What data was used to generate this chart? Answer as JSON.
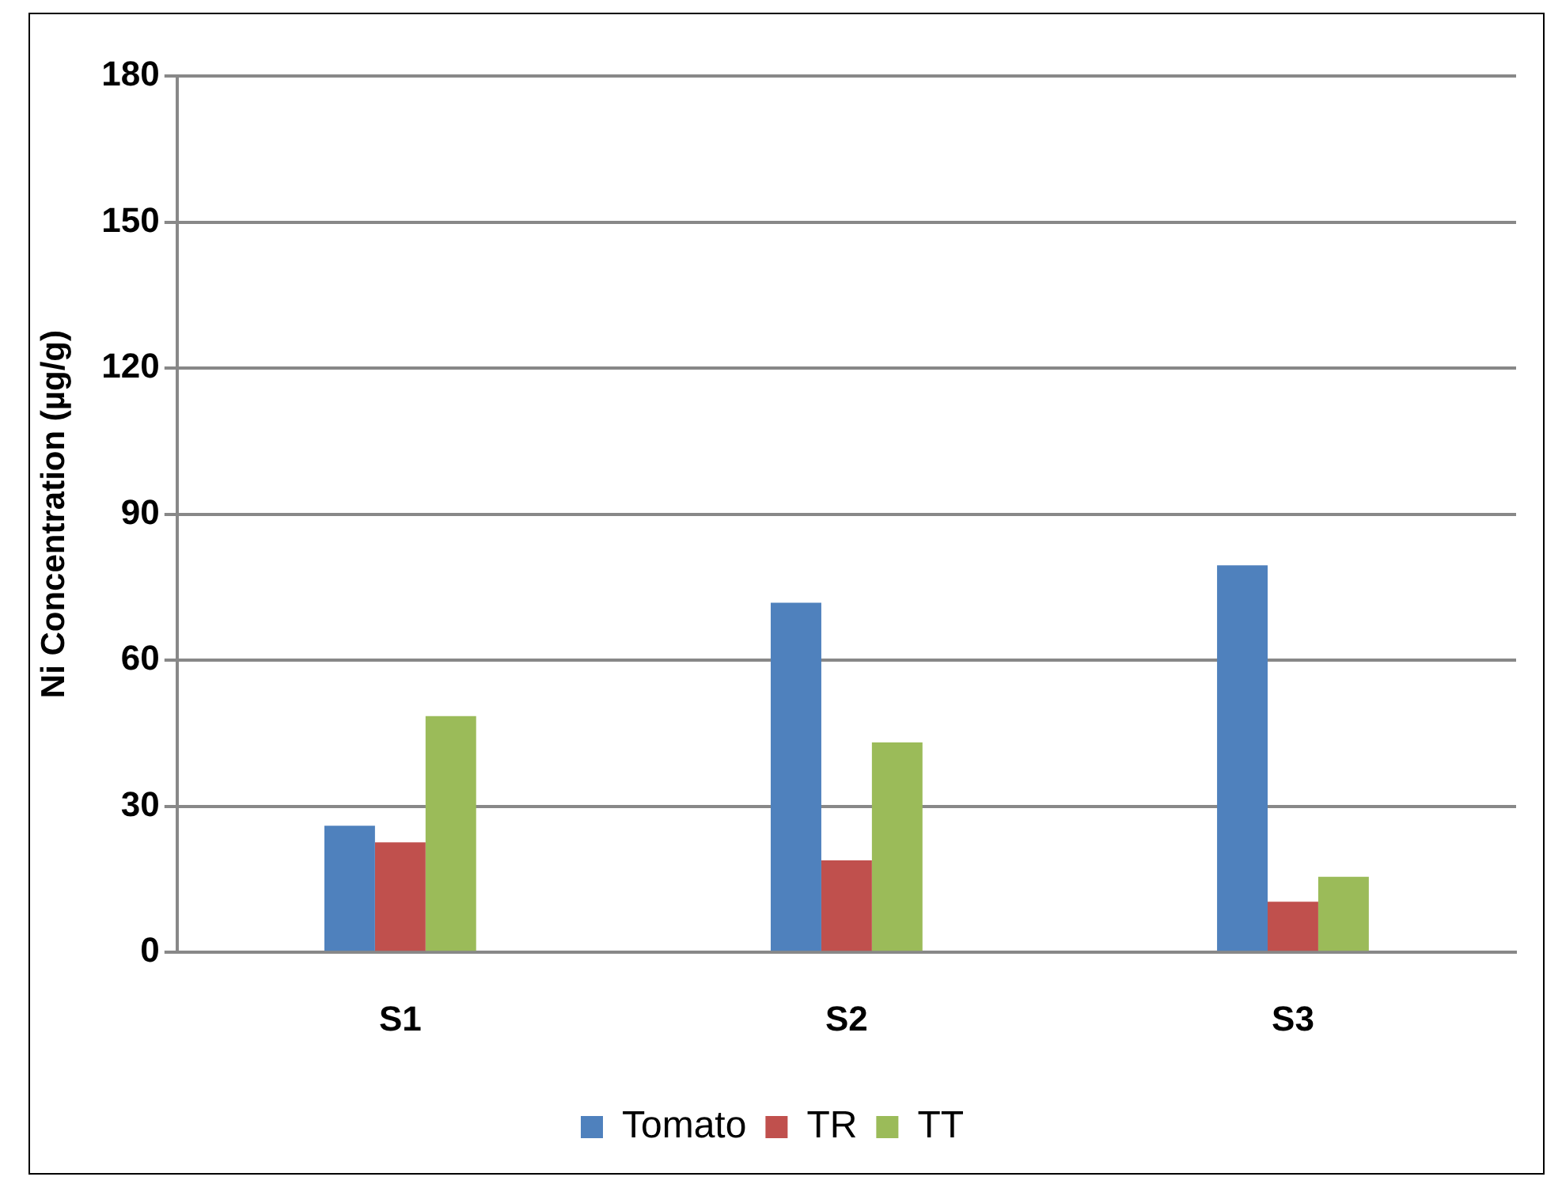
{
  "chart_data": {
    "type": "bar",
    "ylabel": "Ni Concentration (µg/g)",
    "categories": [
      "S1",
      "S2",
      "S3"
    ],
    "series": [
      {
        "name": "Tomato",
        "color": "#4f81bd",
        "values": [
          26,
          71.8,
          79.5
        ]
      },
      {
        "name": "TR",
        "color": "#c0504d",
        "values": [
          22.6,
          18.9,
          10.4
        ]
      },
      {
        "name": "TT",
        "color": "#9bbb59",
        "values": [
          48.5,
          43.1,
          15.5
        ]
      }
    ],
    "ylim": [
      0,
      180
    ],
    "yticks": [
      0,
      30,
      60,
      90,
      120,
      150,
      180
    ],
    "grid": "y",
    "legend": "bottom"
  }
}
